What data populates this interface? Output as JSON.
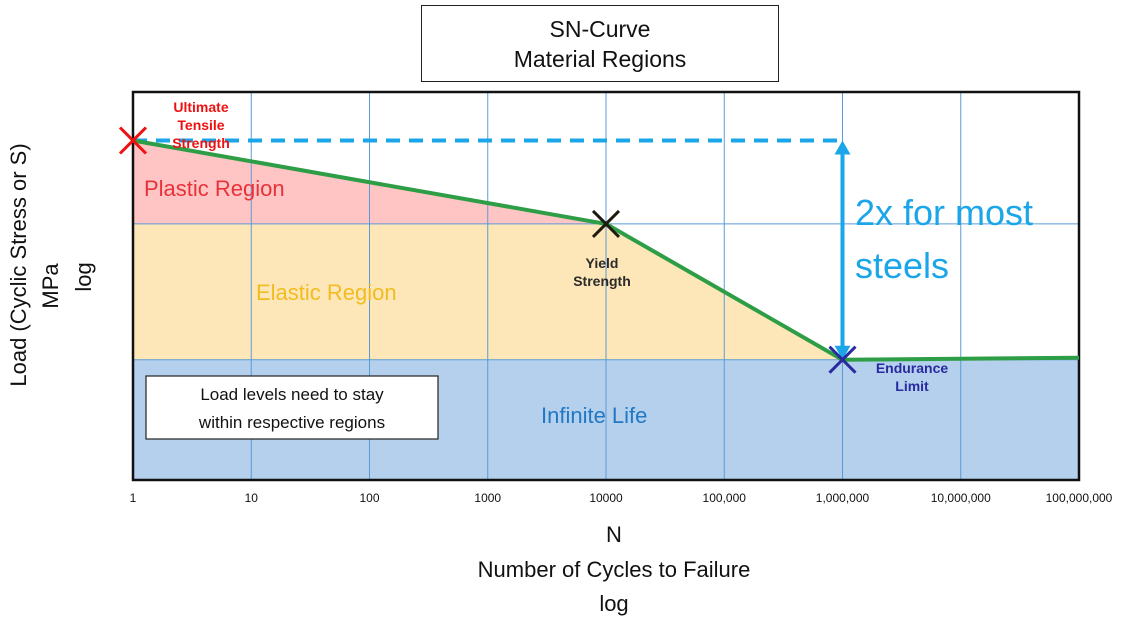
{
  "chart_data": {
    "type": "line",
    "title": "SN-Curve",
    "subtitle": "Material Regions",
    "xlabel": "N",
    "xlabel_line2": "Number of Cycles to Failure",
    "xlabel_line3": "log",
    "ylabel": "Load (Cyclic Stress or S)",
    "ylabel_line2": "MPa",
    "ylabel_line3": "log",
    "x_scale": "log",
    "xlim": [
      1,
      100000000
    ],
    "ylim": [
      0,
      100
    ],
    "x_ticks": [
      {
        "value": 1,
        "label": "1"
      },
      {
        "value": 10,
        "label": "10"
      },
      {
        "value": 100,
        "label": "100"
      },
      {
        "value": 1000,
        "label": "1000"
      },
      {
        "value": 10000,
        "label": "10000"
      },
      {
        "value": 100000,
        "label": "100,000"
      },
      {
        "value": 1000000,
        "label": "1,000,000"
      },
      {
        "value": 10000000,
        "label": "10,000,000"
      },
      {
        "value": 100000000,
        "label": "100,000,000"
      }
    ],
    "y_gridlines": [
      31,
      66
    ],
    "grid": true,
    "series": [
      {
        "name": "SN curve",
        "color": "#2e9e46",
        "points": [
          {
            "x": 1,
            "y": 87.5
          },
          {
            "x": 10000,
            "y": 66
          },
          {
            "x": 1000000,
            "y": 31
          },
          {
            "x": 100000000,
            "y": 31.5
          }
        ]
      }
    ],
    "regions": [
      {
        "name": "Plastic Region",
        "label": "Plastic Region",
        "color": "#ff9c9c",
        "label_color": "#e8323a"
      },
      {
        "name": "Elastic Region",
        "label": "Elastic Region",
        "color": "#fde7b8",
        "label_color": "#f2bc20"
      },
      {
        "name": "Infinite Life",
        "label": "Infinite Life",
        "color": "#b4d0ec",
        "label_color": "#2178c4"
      }
    ],
    "markers": [
      {
        "name": "ultimate-tensile-strength",
        "x": 1,
        "y": 87.5,
        "color": "#ee1111",
        "label_lines": [
          "Ultimate",
          "Tensile",
          "Strength"
        ],
        "label_color": "#ee1111"
      },
      {
        "name": "yield-strength",
        "x": 10000,
        "y": 66,
        "color": "#1e1a10",
        "label_lines": [
          "Yield",
          "Strength"
        ],
        "label_color": "#2b2b2b"
      },
      {
        "name": "endurance-limit",
        "x": 1000000,
        "y": 31,
        "color": "#2a2aa0",
        "label_lines": [
          "Endurance",
          "Limit"
        ],
        "label_color": "#2a2aa0"
      }
    ],
    "annotations": {
      "uts_dashed_level": 87.5,
      "arrow_x": 1000000,
      "arrow_from": 87.5,
      "arrow_to": 31,
      "arrow_color": "#1aa6e8",
      "arrow_text_lines": [
        "2x for most",
        "steels"
      ],
      "note_lines": [
        "Load levels need to stay",
        "within respective regions"
      ]
    }
  }
}
